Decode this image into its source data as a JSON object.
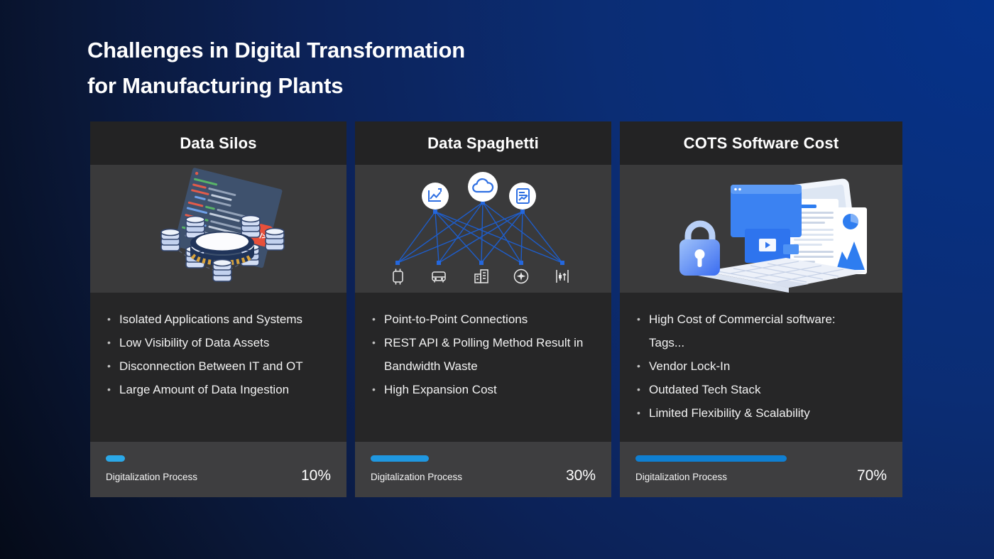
{
  "slide": {
    "title_line1": "Challenges in Digital Transformation",
    "title_line2": "for Manufacturing Plants",
    "colors": {
      "background_top_right": "#05328A",
      "background_bottom_left": "#020409",
      "card_header_bg": "#232324",
      "card_illustration_bg": "#3A3A3B",
      "card_body_bg": "#262627",
      "card_footer_bg": "#3E3E40"
    }
  },
  "cards": [
    {
      "title": "Data Silos",
      "illustration": "isometric-database-silos",
      "icons": [
        "code-window-icon",
        "code-badge-icon",
        "data-hub-coin-icon",
        "database-stack-icon"
      ],
      "bullets": [
        "Isolated Applications and Systems",
        "Low Visibility of Data Assets",
        "Disconnection Between IT and OT",
        "Large Amount of Data Ingestion"
      ],
      "progress_label": "Digitalization Process",
      "progress_value": "10%",
      "progress_pct": 10,
      "bar_color": "#2BA8E8"
    },
    {
      "title": "Data Spaghetti",
      "illustration": "point-to-point-spaghetti-network",
      "icons": [
        "line-chart-icon",
        "cloud-icon",
        "report-icon",
        "device-icon",
        "vehicle-icon",
        "building-icon",
        "airport-icon",
        "stock-chart-icon"
      ],
      "bullets": [
        "Point-to-Point Connections",
        "REST API & Polling Method Result in Bandwidth Waste",
        "High Expansion Cost"
      ],
      "progress_label": "Digitalization Process",
      "progress_value": "30%",
      "progress_pct": 30,
      "bar_color": "#1F97E0"
    },
    {
      "title": "COTS Software Cost",
      "illustration": "locked-laptop-software",
      "icons": [
        "laptop-icon",
        "browser-window-icon",
        "media-window-icon",
        "document-icon",
        "chart-panel-icon",
        "padlock-icon"
      ],
      "bullets": [
        "High Cost of Commercial software:\nTags...",
        "Vendor Lock-In",
        "Outdated Tech Stack",
        "Limited Flexibility & Scalability"
      ],
      "progress_label": "Digitalization Process",
      "progress_value": "70%",
      "progress_pct": 70,
      "bar_color": "#0F7FD2"
    }
  ]
}
